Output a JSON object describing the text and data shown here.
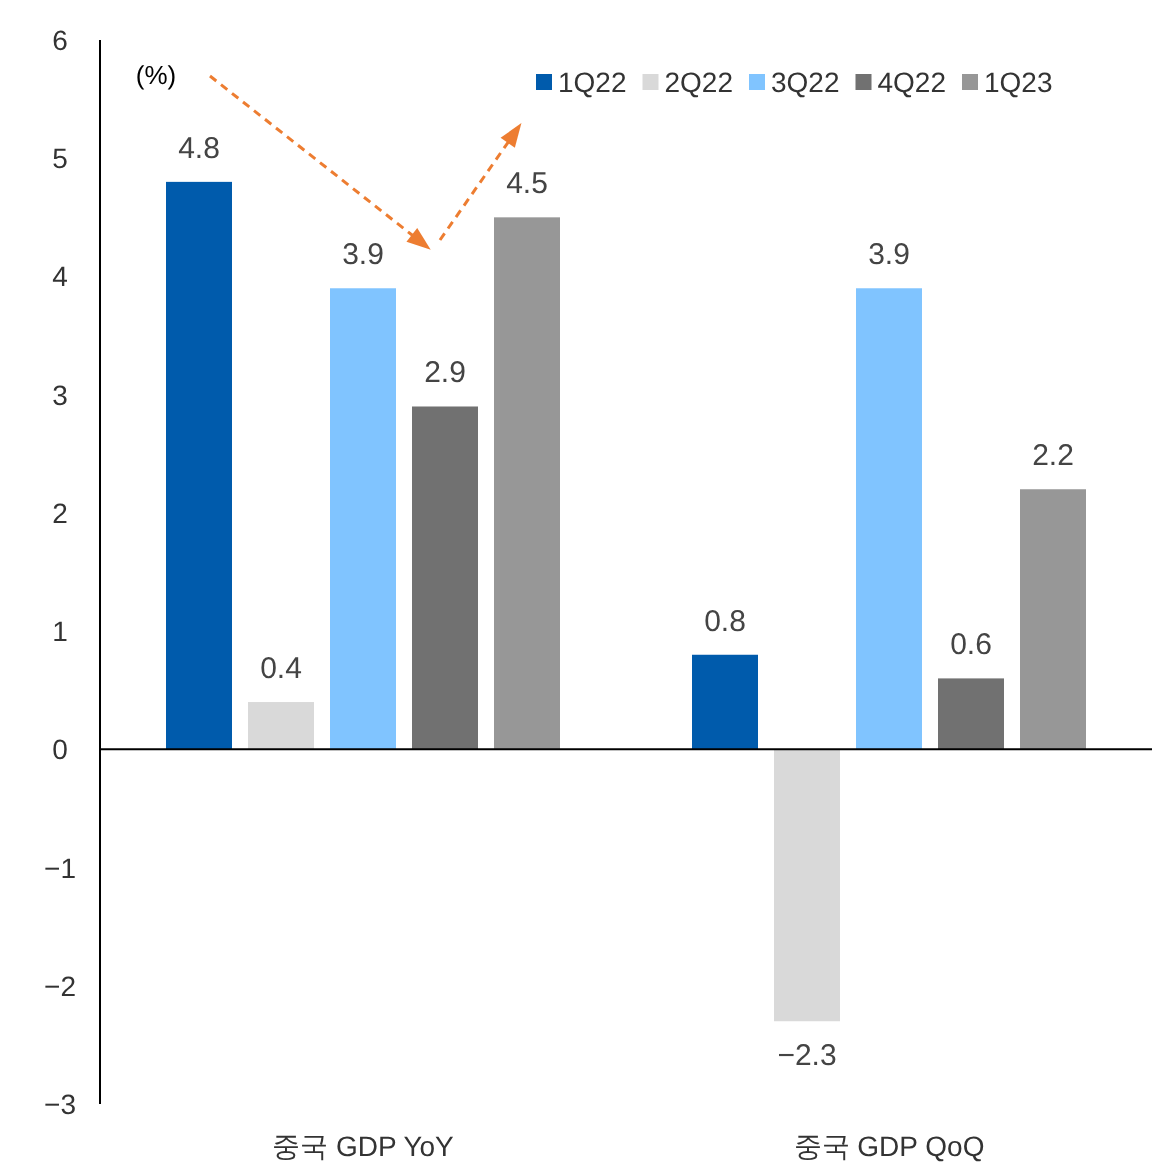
{
  "chart_data": {
    "type": "bar",
    "categories": [
      "중국 GDP YoY",
      "중국 GDP QoQ"
    ],
    "series": [
      {
        "name": "1Q22",
        "color": "#005bac",
        "values": [
          4.8,
          0.8
        ]
      },
      {
        "name": "2Q22",
        "color": "#d9d9d9",
        "values": [
          0.4,
          -2.3
        ]
      },
      {
        "name": "3Q22",
        "color": "#80c4ff",
        "values": [
          3.9,
          3.9
        ]
      },
      {
        "name": "4Q22",
        "color": "#717171",
        "values": [
          2.9,
          0.6
        ]
      },
      {
        "name": "1Q23",
        "color": "#979797",
        "values": [
          4.5,
          2.2
        ]
      }
    ],
    "ylim": [
      -3,
      6
    ],
    "yticks": [
      -3,
      -2,
      -1,
      0,
      1,
      2,
      3,
      4,
      5,
      6
    ],
    "data_labels": true,
    "legend": "top right",
    "annotations": [
      "(%)"
    ]
  }
}
